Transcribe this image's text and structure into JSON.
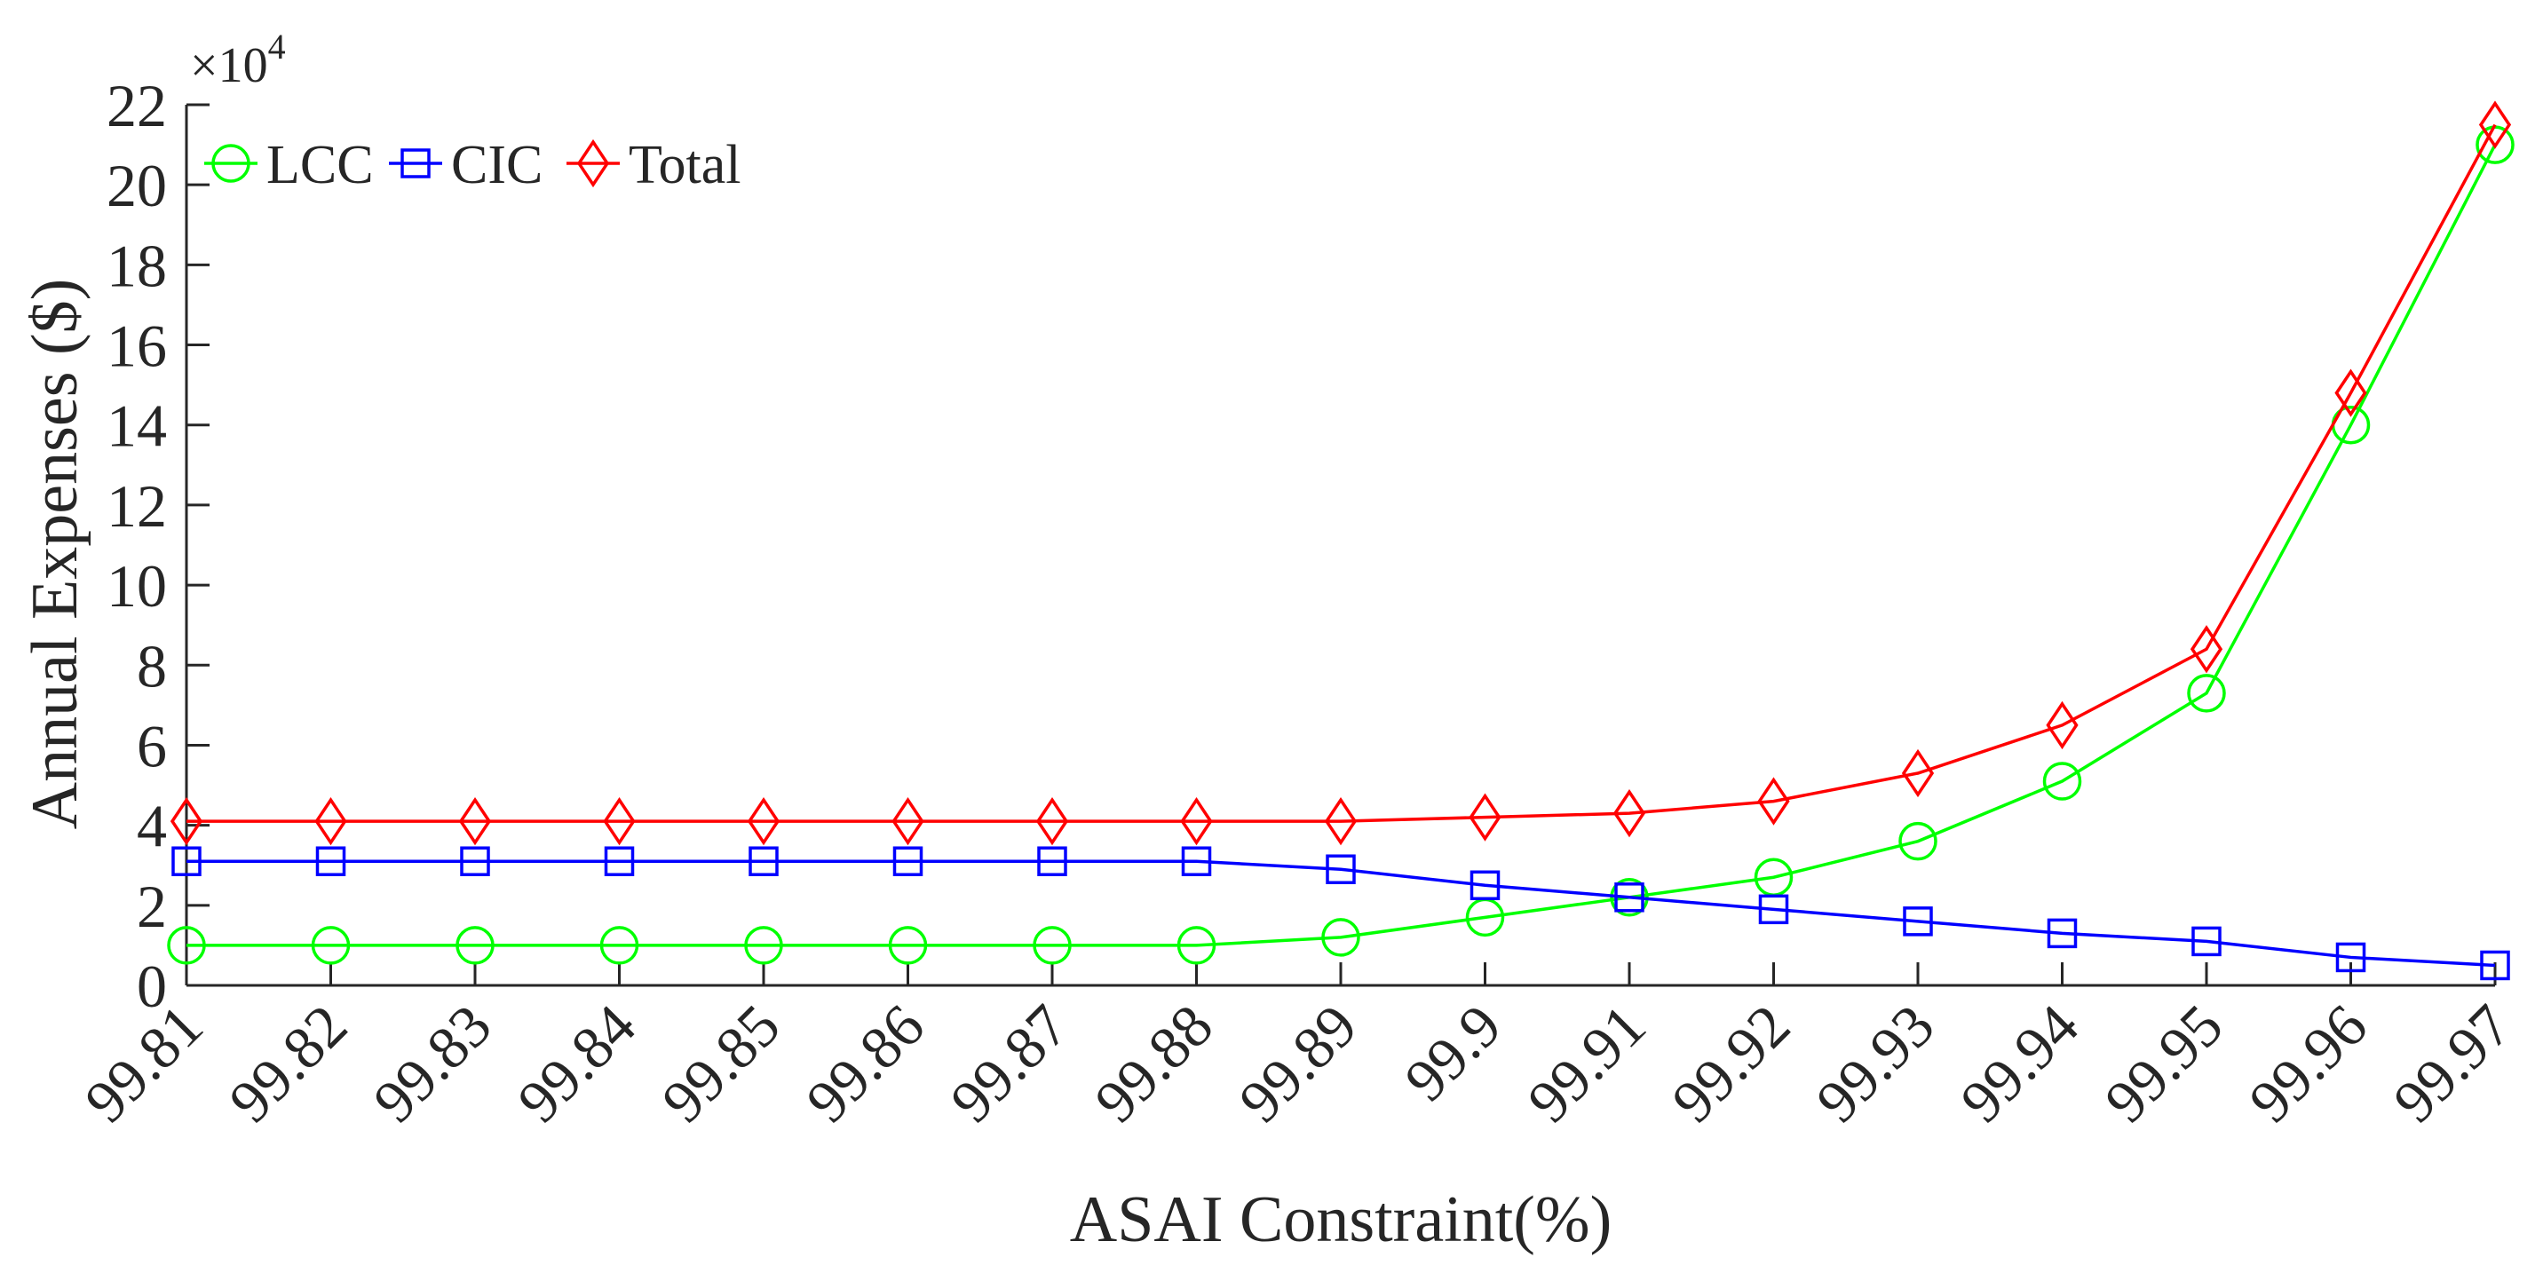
{
  "chart_data": {
    "type": "line",
    "title": "",
    "xlabel": "ASAI Constraint(%)",
    "ylabel": "Annual Expenses ($)",
    "y_multiplier_label": "×10",
    "y_multiplier_exponent": "4",
    "categories": [
      "99.81",
      "99.82",
      "99.83",
      "99.84",
      "99.85",
      "99.86",
      "99.87",
      "99.88",
      "99.89",
      "99.9",
      "99.91",
      "99.92",
      "99.93",
      "99.94",
      "99.95",
      "99.96",
      "99.97"
    ],
    "ylim": [
      0,
      22
    ],
    "yticks": [
      0,
      2,
      4,
      6,
      8,
      10,
      12,
      14,
      16,
      18,
      20,
      22
    ],
    "ytick_labels": [
      "0",
      "2",
      "4",
      "6",
      "8",
      "10",
      "12",
      "14",
      "16",
      "18",
      "20",
      "22"
    ],
    "legend_position": "top-left",
    "series": [
      {
        "name": "LCC",
        "color": "#00ff00",
        "marker": "circle",
        "values": [
          1.0,
          1.0,
          1.0,
          1.0,
          1.0,
          1.0,
          1.0,
          1.0,
          1.2,
          1.7,
          2.2,
          2.7,
          3.6,
          5.1,
          7.3,
          14.0,
          21.0
        ]
      },
      {
        "name": "CIC",
        "color": "#0000ff",
        "marker": "square",
        "values": [
          3.1,
          3.1,
          3.1,
          3.1,
          3.1,
          3.1,
          3.1,
          3.1,
          2.9,
          2.5,
          2.2,
          1.9,
          1.6,
          1.3,
          1.1,
          0.7,
          0.5
        ]
      },
      {
        "name": "Total",
        "color": "#ff0000",
        "marker": "diamond",
        "values": [
          4.1,
          4.1,
          4.1,
          4.1,
          4.1,
          4.1,
          4.1,
          4.1,
          4.1,
          4.2,
          4.3,
          4.6,
          5.3,
          6.5,
          8.4,
          14.8,
          21.5
        ]
      }
    ]
  }
}
